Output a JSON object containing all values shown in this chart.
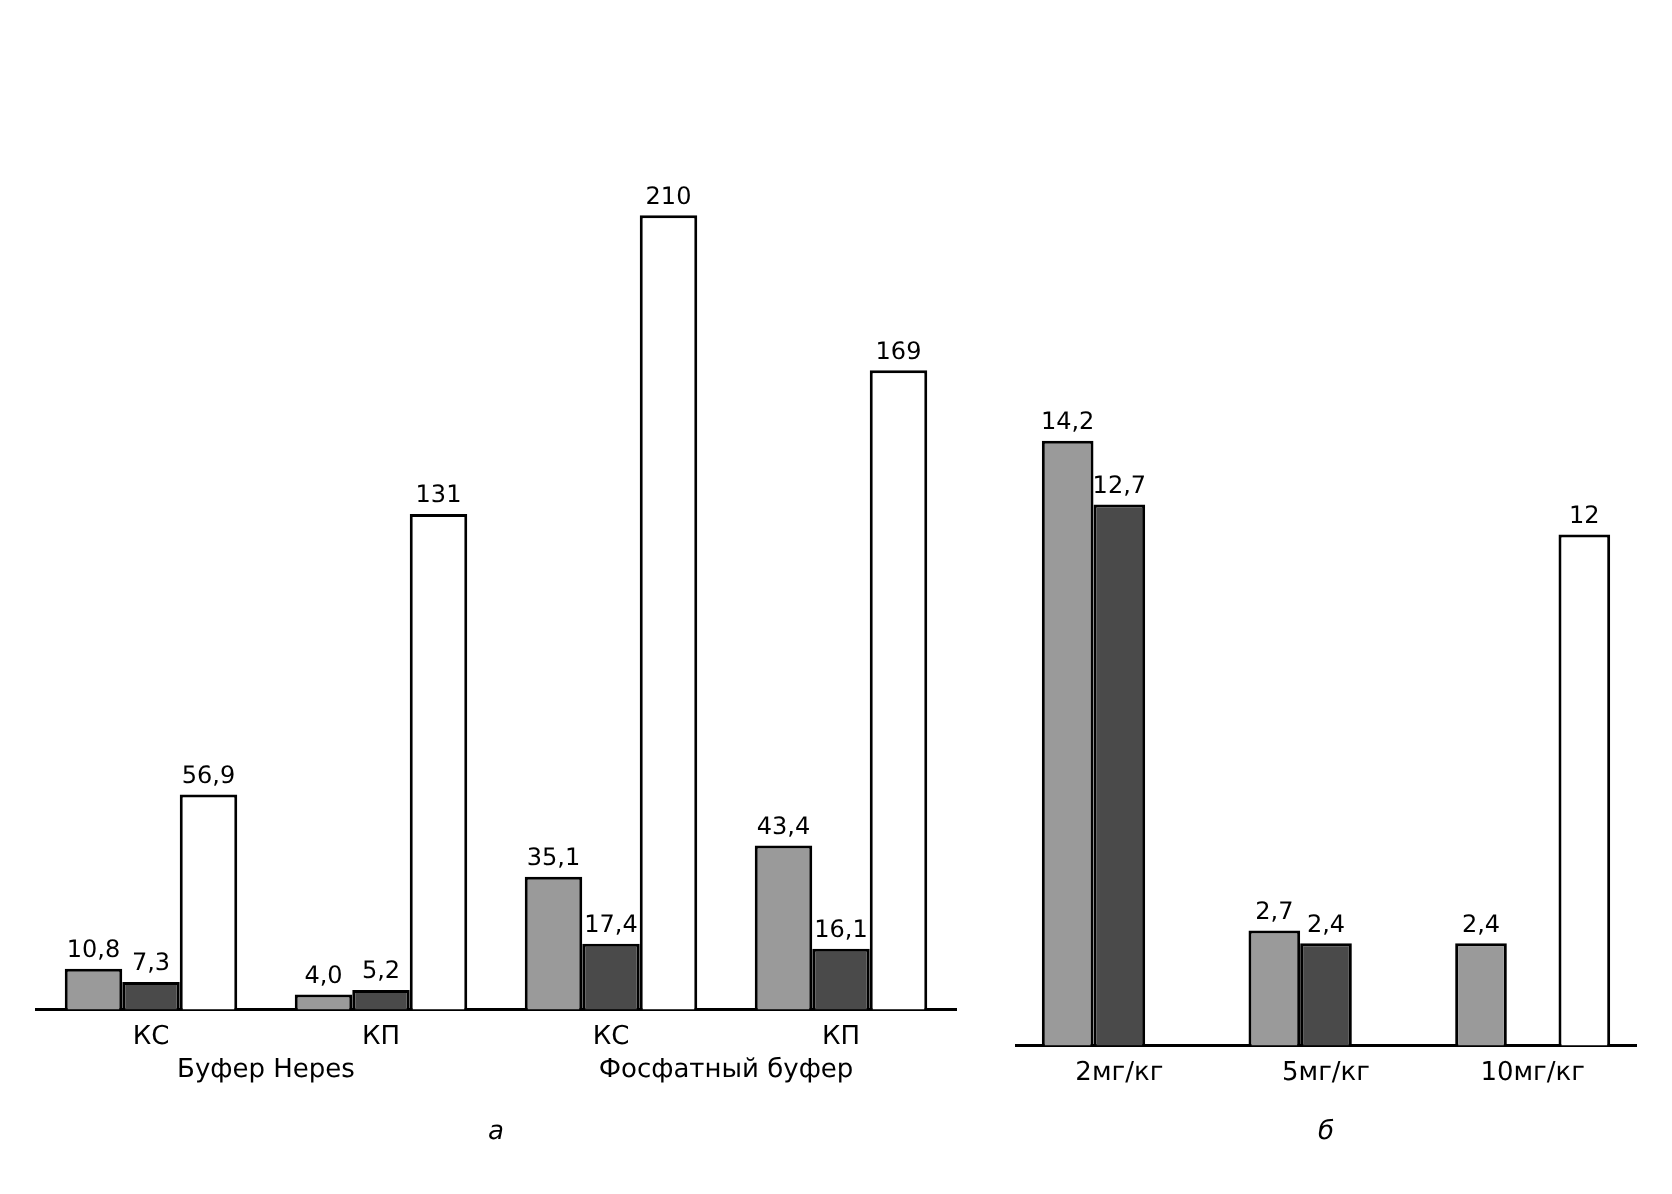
{
  "chart_data": [
    {
      "type": "bar",
      "categories": [
        "КС",
        "КП",
        "КС",
        "КП"
      ],
      "xlabel": "а",
      "annotations": [
        "Буфер Hepes",
        "Фосфатный буфер"
      ],
      "tick_labels": "x",
      "grid": false,
      "legend": false,
      "series": [
        {
          "color": "#9a9a9a",
          "values": [
            10.8,
            4.0,
            35.1,
            43.4
          ],
          "value_labels": [
            "10,8",
            "4,0",
            "35,1",
            "43,4"
          ]
        },
        {
          "color": "#4a4a4a",
          "values": [
            7.3,
            5.2,
            17.4,
            16.1
          ],
          "value_labels": [
            "7,3",
            "5,2",
            "17,4",
            "16,1"
          ]
        },
        {
          "color": "#ffffff",
          "values": [
            56.9,
            131,
            210,
            169
          ],
          "value_labels": [
            "56,9",
            "131",
            "210",
            "169"
          ]
        }
      ]
    },
    {
      "type": "bar",
      "categories": [
        "2мг/кг",
        "5мг/кг",
        "10мг/кг"
      ],
      "xlabel": "б",
      "tick_labels": "x",
      "grid": false,
      "legend": false,
      "series": [
        {
          "color": "#9a9a9a",
          "values": [
            14.2,
            2.7,
            2.4
          ],
          "value_labels": [
            "14,2",
            "2,7",
            "2,4"
          ]
        },
        {
          "color": "#4a4a4a",
          "values": [
            12.7,
            2.4,
            0
          ],
          "value_labels": [
            "12,7",
            "2,4",
            null
          ]
        },
        {
          "color": "#ffffff",
          "values": [
            null,
            null,
            12
          ],
          "value_labels": [
            null,
            null,
            "12"
          ]
        }
      ]
    }
  ]
}
